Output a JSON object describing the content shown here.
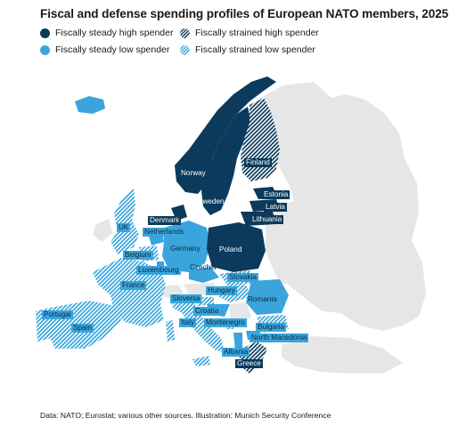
{
  "title": "Fiscal and defense spending profiles of European NATO members, 2025",
  "legend": {
    "steady_high": "Fiscally steady high spender",
    "strained_high": "Fiscally strained high spender",
    "steady_low": "Fiscally steady low spender",
    "strained_low": "Fiscally strained low spender"
  },
  "colors": {
    "steady_high": "#0b3a5c",
    "steady_low": "#3aa5dc",
    "non_member": "#e6e6e6"
  },
  "countries": {
    "norway": "Norway",
    "sweden": "Sweden",
    "finland": "Finland",
    "estonia": "Estonia",
    "latvia": "Latvia",
    "lithuania": "Lithuania",
    "denmark": "Denmark",
    "uk": "UK",
    "netherlands": "Netherlands",
    "germany": "Germany",
    "poland": "Poland",
    "belgium": "Belgium",
    "luxembourg": "Luxembourg",
    "czechia": "Czechia",
    "slovakia": "Slovakia",
    "france": "France",
    "hungary": "Hungary",
    "romania": "Romania",
    "slovenia": "Slovenia",
    "croatia": "Croatia",
    "montenegro": "Montenegro",
    "italy": "Italy",
    "bulgaria": "Bulgaria",
    "north_macedonia": "North Macedonia",
    "portugal": "Portugal",
    "spain": "Spain",
    "albania": "Albania",
    "greece": "Greece"
  },
  "source": "Data: NATO; Eurostat; various other sources. Illustration: Munich Security Conference"
}
